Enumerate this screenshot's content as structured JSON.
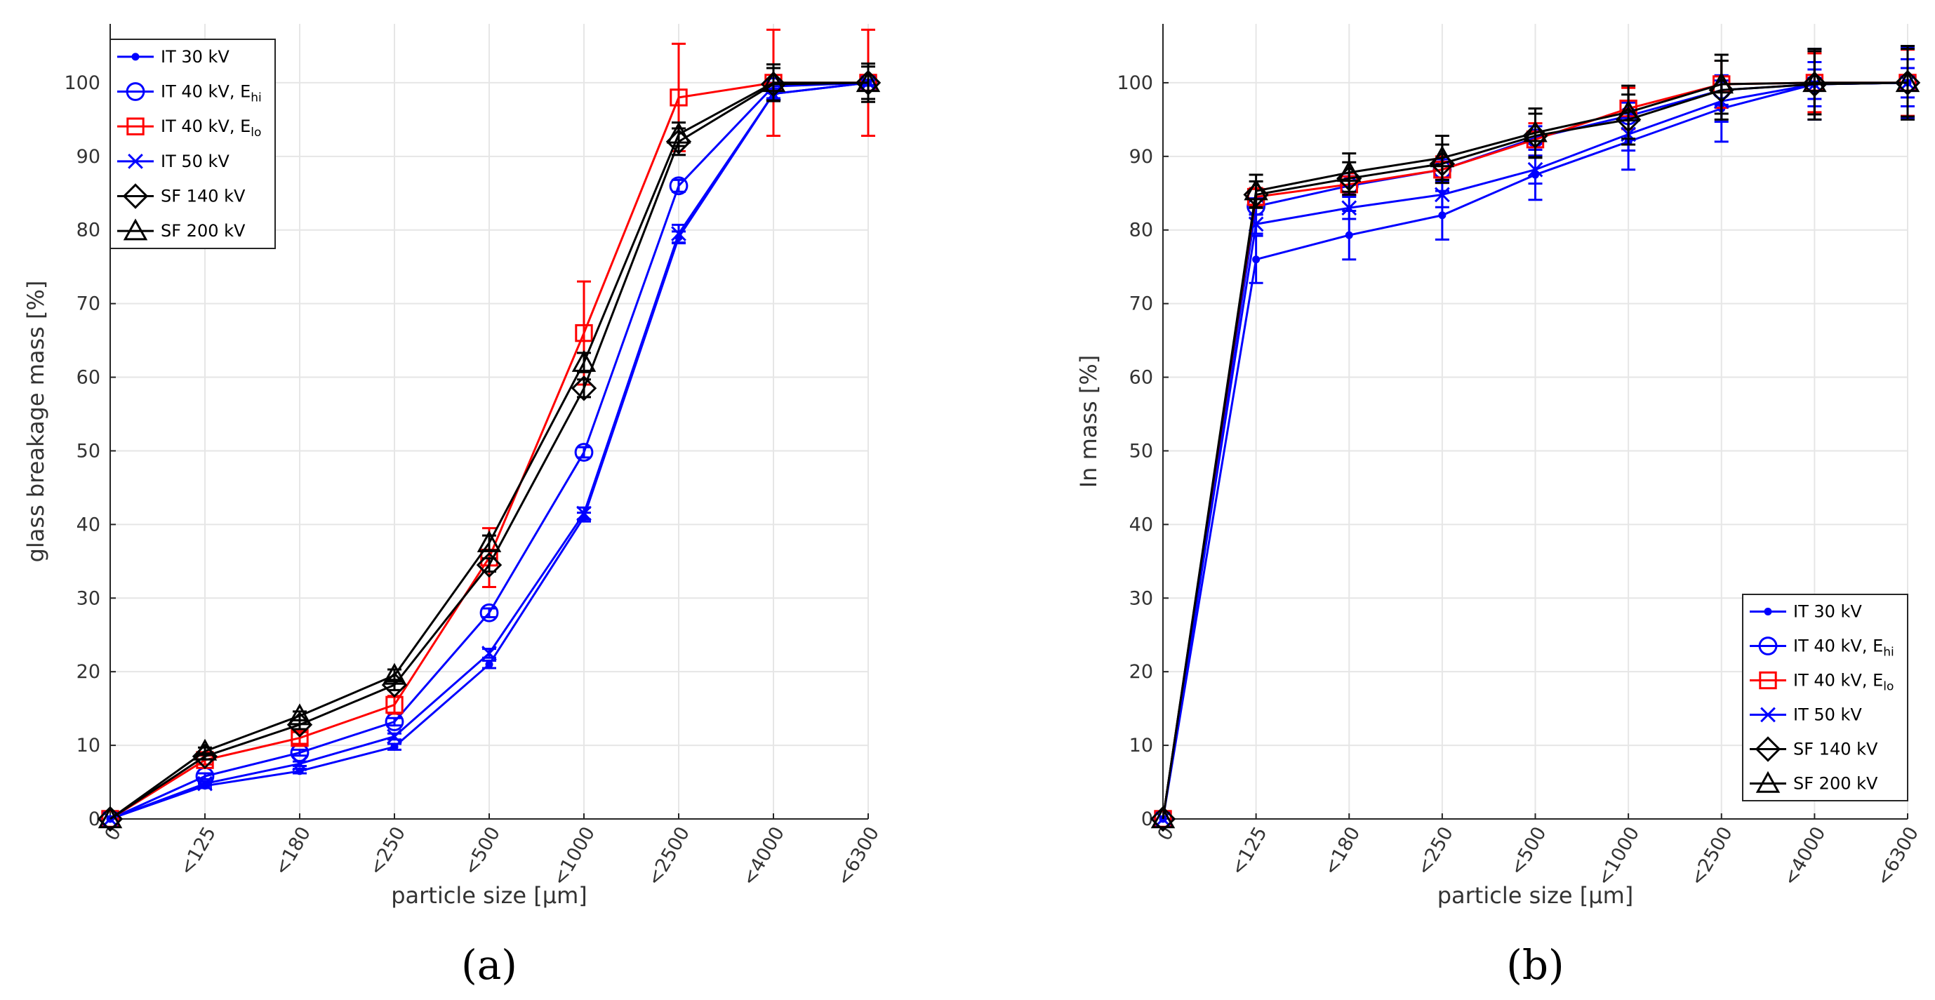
{
  "chart_data": [
    {
      "type": "line",
      "panel_label": "(a)",
      "xlabel": "particle size [µm]",
      "ylabel": "glass breakage mass [%]",
      "categories": [
        "0",
        "<125",
        "<180",
        "<250",
        "<500",
        "<1000",
        "<2500",
        "<4000",
        "<6300"
      ],
      "ylim": [
        0,
        108
      ],
      "yticks": [
        "0",
        "10",
        "20",
        "30",
        "40",
        "50",
        "60",
        "70",
        "80",
        "90",
        "100"
      ],
      "grid": true,
      "legend_position": "top-left",
      "series": [
        {
          "name": "IT 30 kV",
          "sub": "",
          "color": "#0000ff",
          "marker": "dot",
          "values": [
            0,
            4.5,
            6.5,
            9.8,
            21,
            41,
            79,
            98.5,
            100
          ],
          "errors": [
            0,
            0.3,
            0.3,
            0.4,
            0.5,
            0.6,
            0.8,
            0.6,
            0.3
          ]
        },
        {
          "name": "IT 40 kV, E",
          "sub": "hi",
          "color": "#0000ff",
          "marker": "circle",
          "values": [
            0,
            5.8,
            9,
            13.2,
            28,
            49.8,
            86,
            99.5,
            100
          ],
          "errors": [
            0,
            0.4,
            0.4,
            0.5,
            0.6,
            0.7,
            0.8,
            0.5,
            0.3
          ]
        },
        {
          "name": "IT 40 kV, E",
          "sub": "lo",
          "color": "#ff0000",
          "marker": "square",
          "values": [
            0,
            8,
            11,
            15.5,
            35.5,
            66,
            98,
            100,
            100
          ],
          "errors": [
            0,
            0.6,
            0.8,
            1.2,
            4,
            7,
            7.3,
            7.2,
            7.2
          ]
        },
        {
          "name": "IT 50 kV",
          "sub": "",
          "color": "#0000ff",
          "marker": "x",
          "values": [
            0,
            4.8,
            7.5,
            11.2,
            22.5,
            41.5,
            79.5,
            98.5,
            100
          ],
          "errors": [
            0,
            0.3,
            0.3,
            0.4,
            0.6,
            0.8,
            1.2,
            0.7,
            0.4
          ]
        },
        {
          "name": "SF 140 kV",
          "sub": "",
          "color": "#000000",
          "marker": "diamond",
          "values": [
            0,
            8.5,
            12.8,
            18.2,
            34.5,
            58.5,
            92,
            99.8,
            100
          ],
          "errors": [
            0,
            0.4,
            0.6,
            0.7,
            0.9,
            1.2,
            1.8,
            2.2,
            2.2
          ]
        },
        {
          "name": "SF 200 kV",
          "sub": "",
          "color": "#000000",
          "marker": "triangle",
          "values": [
            0,
            9.2,
            14,
            19.5,
            37.5,
            62,
            93,
            100,
            100
          ],
          "errors": [
            0,
            0.5,
            0.6,
            0.8,
            1,
            1.3,
            1.6,
            2.5,
            2.6
          ]
        }
      ]
    },
    {
      "type": "line",
      "panel_label": "(b)",
      "xlabel": "particle size [µm]",
      "ylabel": "In mass [%]",
      "categories": [
        "0",
        "<125",
        "<180",
        "<250",
        "<500",
        "<1000",
        "<2500",
        "<4000",
        "<6300"
      ],
      "ylim": [
        0,
        108
      ],
      "yticks": [
        "0",
        "10",
        "20",
        "30",
        "40",
        "50",
        "60",
        "70",
        "80",
        "90",
        "100"
      ],
      "grid": true,
      "legend_position": "bottom-right",
      "series": [
        {
          "name": "IT 30 kV",
          "sub": "",
          "color": "#0000ff",
          "marker": "dot",
          "values": [
            0,
            76,
            79.3,
            82,
            87.5,
            92,
            96.5,
            99.8,
            100
          ],
          "errors": [
            0,
            3.2,
            3.3,
            3.3,
            3.4,
            3.8,
            4.5,
            4.8,
            4.8
          ]
        },
        {
          "name": "IT 40 kV, E",
          "sub": "hi",
          "color": "#0000ff",
          "marker": "circle",
          "values": [
            0,
            83.2,
            86,
            88.2,
            92.5,
            95.5,
            99,
            99.8,
            100
          ],
          "errors": [
            0,
            1.1,
            1.3,
            1.4,
            1.6,
            1.8,
            2,
            2,
            2
          ]
        },
        {
          "name": "IT 40 kV, E",
          "sub": "lo",
          "color": "#ff0000",
          "marker": "square",
          "values": [
            0,
            84.5,
            86.2,
            88.2,
            92.3,
            96.5,
            99.8,
            100,
            100
          ],
          "errors": [
            0,
            1.2,
            1.5,
            1.8,
            2.2,
            2.8,
            3.2,
            4,
            4.5
          ]
        },
        {
          "name": "IT 50 kV",
          "sub": "",
          "color": "#0000ff",
          "marker": "x",
          "values": [
            0,
            80.8,
            83,
            84.8,
            88.2,
            93,
            97.5,
            99.8,
            100
          ],
          "errors": [
            0,
            1.3,
            1.5,
            1.7,
            1.9,
            2.2,
            2.8,
            3,
            3.2
          ]
        },
        {
          "name": "SF 140 kV",
          "sub": "",
          "color": "#000000",
          "marker": "diamond",
          "values": [
            0,
            84.8,
            87,
            89,
            92.8,
            95,
            99,
            99.8,
            100
          ],
          "errors": [
            0,
            1.8,
            2.2,
            2.6,
            3,
            3.4,
            4,
            4.8,
            5
          ]
        },
        {
          "name": "SF 200 kV",
          "sub": "",
          "color": "#000000",
          "marker": "triangle",
          "values": [
            0,
            85.3,
            87.8,
            89.8,
            93.2,
            96,
            99.8,
            100,
            100
          ],
          "errors": [
            0,
            2.2,
            2.6,
            3,
            3.3,
            3.6,
            4,
            4.3,
            4.6
          ]
        }
      ]
    }
  ]
}
